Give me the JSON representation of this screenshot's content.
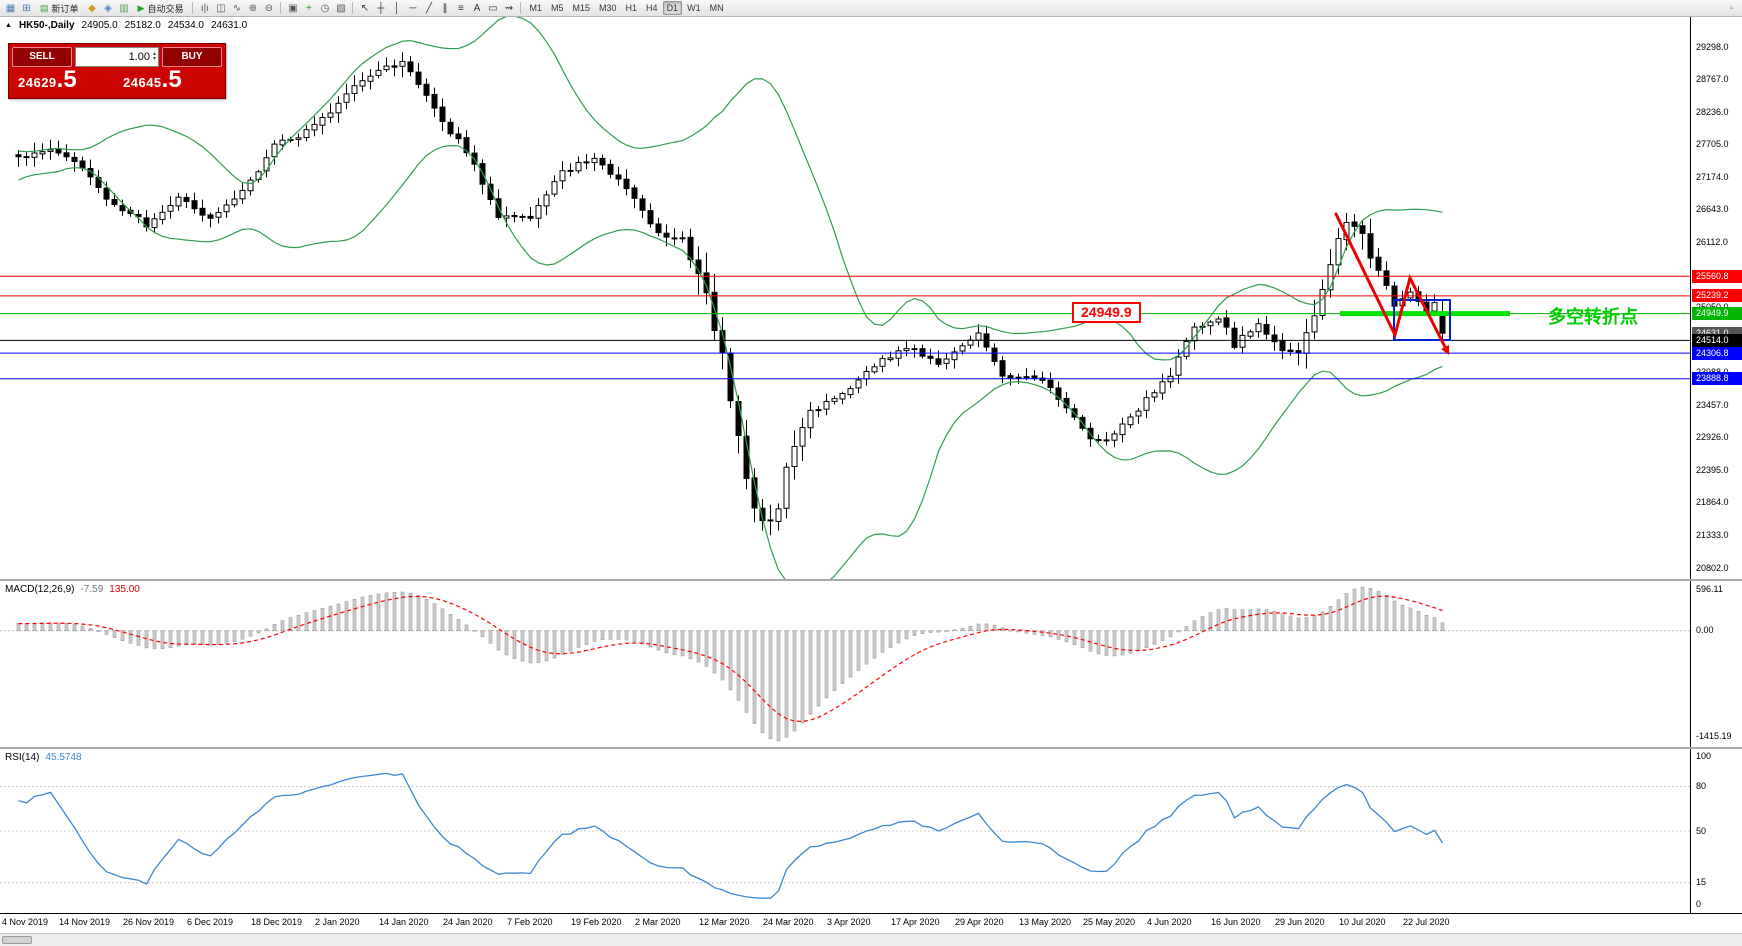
{
  "toolbar": {
    "items": [
      {
        "type": "icon",
        "name": "new-chart-icon",
        "glyph": "▦",
        "color": "#4a78b4"
      },
      {
        "type": "icon",
        "name": "chart-windows-icon",
        "glyph": "⊞",
        "color": "#4a78b4"
      },
      {
        "type": "button",
        "name": "new-order-button",
        "glyph": "▤",
        "glyph_color": "#3aa03a",
        "label": "新订单"
      },
      {
        "type": "icon",
        "name": "market-watch-icon",
        "glyph": "◆",
        "color": "#d89c1a"
      },
      {
        "type": "icon",
        "name": "navigator-icon",
        "glyph": "◈",
        "color": "#4a86c8"
      },
      {
        "type": "icon",
        "name": "terminal-icon",
        "glyph": "▥",
        "color": "#58a058"
      },
      {
        "type": "button",
        "name": "autotrading-button",
        "glyph": "▶",
        "glyph_color": "#22aa22",
        "label": "自动交易"
      },
      {
        "type": "sep"
      },
      {
        "type": "icon",
        "name": "bar-chart-mode-icon",
        "glyph": "ı|ı",
        "color": "#555555"
      },
      {
        "type": "icon",
        "name": "candlestick-mode-icon",
        "glyph": "◫",
        "color": "#555555"
      },
      {
        "type": "icon",
        "name": "line-chart-mode-icon",
        "glyph": "∿",
        "color": "#555555"
      },
      {
        "type": "icon",
        "name": "zoom-in-icon",
        "glyph": "⊕",
        "color": "#555555"
      },
      {
        "type": "icon",
        "name": "zoom-out-icon",
        "glyph": "⊖",
        "color": "#555555"
      },
      {
        "type": "sep"
      },
      {
        "type": "icon",
        "name": "tile-windows-icon",
        "glyph": "▣",
        "color": "#555555"
      },
      {
        "type": "icon",
        "name": "indicators-icon",
        "glyph": "+",
        "color": "#22a022"
      },
      {
        "type": "icon",
        "name": "periods-icon",
        "glyph": "◷",
        "color": "#555555"
      },
      {
        "type": "icon",
        "name": "templates-icon",
        "glyph": "▧",
        "color": "#555555"
      },
      {
        "type": "sep"
      },
      {
        "type": "icon",
        "name": "cursor-icon",
        "glyph": "↖",
        "color": "#333333"
      },
      {
        "type": "icon",
        "name": "crosshair-icon",
        "glyph": "┼",
        "color": "#333333"
      },
      {
        "type": "icon",
        "name": "vertical-line-icon",
        "glyph": "│",
        "color": "#333333"
      },
      {
        "type": "icon",
        "name": "horizontal-line-icon",
        "glyph": "─",
        "color": "#333333"
      },
      {
        "type": "icon",
        "name": "trendline-icon",
        "glyph": "╱",
        "color": "#333333"
      },
      {
        "type": "icon",
        "name": "channel-icon",
        "glyph": "∥",
        "color": "#333333"
      },
      {
        "type": "icon",
        "name": "fibonacci-icon",
        "glyph": "≡",
        "color": "#333333"
      },
      {
        "type": "icon",
        "name": "text-icon",
        "glyph": "A",
        "color": "#333333"
      },
      {
        "type": "icon",
        "name": "text-label-icon",
        "glyph": "▭",
        "color": "#333333"
      },
      {
        "type": "icon",
        "name": "arrows-icon",
        "glyph": "⇝",
        "color": "#333333"
      },
      {
        "type": "sep"
      },
      {
        "type": "tf",
        "label": "M1"
      },
      {
        "type": "tf",
        "label": "M5"
      },
      {
        "type": "tf",
        "label": "M15"
      },
      {
        "type": "tf",
        "label": "M30"
      },
      {
        "type": "tf",
        "label": "H1"
      },
      {
        "type": "tf",
        "label": "H4"
      },
      {
        "type": "tf",
        "label": "D1",
        "active": true
      },
      {
        "type": "tf",
        "label": "W1"
      },
      {
        "type": "tf",
        "label": "MN"
      },
      {
        "type": "spacer"
      },
      {
        "type": "icon",
        "name": "toolbar-options-icon",
        "glyph": "▫",
        "color": "#777777"
      }
    ]
  },
  "chart": {
    "collapse_icon": "▲",
    "symbol_period": "HK50-,Daily",
    "open": "24905.0",
    "high": "25182.0",
    "low": "24534.0",
    "close": "24631.0"
  },
  "trade_panel": {
    "sell_label": "SELL",
    "buy_label": "BUY",
    "volume": "1.00",
    "sell_price_main": "24629",
    "sell_price_pip": ".5",
    "buy_price_main": "24645",
    "buy_price_pip": ".5",
    "panel_color": "#cc0404",
    "button_color": "#930202"
  },
  "price_scale": {
    "ticks": [
      29298,
      28767,
      28236,
      27705,
      27174,
      26643,
      26112,
      25581,
      25050,
      24519,
      23988,
      23457,
      22926,
      22395,
      21864,
      21333,
      20802
    ],
    "badges": [
      {
        "price": 25560.8,
        "text": "25560.8",
        "bg": "#ff0000"
      },
      {
        "price": 25239.2,
        "text": "25239.2",
        "bg": "#ff0000"
      },
      {
        "price": 24949.9,
        "text": "24949.9",
        "bg": "#00b400"
      },
      {
        "price": 24631.0,
        "text": "24631.0",
        "bg": "#555555"
      },
      {
        "price": 24514.0,
        "text": "24514.0",
        "bg": "#000000"
      },
      {
        "price": 24306.8,
        "text": "24306.8",
        "bg": "#0000ff"
      },
      {
        "price": 23888.8,
        "text": "23888.8",
        "bg": "#0000ff"
      }
    ]
  },
  "hlines": [
    {
      "price": 25560.8,
      "color": "#ff0000"
    },
    {
      "price": 25239.2,
      "color": "#ff0000"
    },
    {
      "price": 24949.9,
      "color": "#00b400"
    },
    {
      "price": 24514.0,
      "color": "#000000"
    },
    {
      "price": 24306.8,
      "color": "#0000ff"
    },
    {
      "price": 23888.8,
      "color": "#0000ff"
    }
  ],
  "annotations": {
    "price_label": "24949.9",
    "turning_point_text": "多空转折点",
    "highlight_color": "#00e400",
    "zigzag_color": "#ee0000",
    "box_color": "#0020cc"
  },
  "macd": {
    "title": "MACD(12,26,9)",
    "value": "-7.59",
    "signal_value": "135.00",
    "scale_labels": [
      "596.11",
      "0.00",
      "-1415.19"
    ]
  },
  "rsi": {
    "title": "RSI(14)",
    "value": "45.5748",
    "scale": [
      100,
      80,
      50,
      15,
      0
    ],
    "levels": [
      80,
      50,
      15
    ]
  },
  "time_axis": {
    "labels": [
      "4 Nov 2019",
      "14 Nov 2019",
      "26 Nov 2019",
      "6 Dec 2019",
      "18 Dec 2019",
      "2 Jan 2020",
      "14 Jan 2020",
      "24 Jan 2020",
      "7 Feb 2020",
      "19 Feb 2020",
      "2 Mar 2020",
      "12 Mar 2020",
      "24 Mar 2020",
      "3 Apr 2020",
      "17 Apr 2020",
      "29 Apr 2020",
      "13 May 2020",
      "25 May 2020",
      "4 Jun 2020",
      "16 Jun 2020",
      "29 Jun 2020",
      "10 Jul 2020",
      "22 Jul 2020"
    ]
  },
  "chart_data": {
    "type": "candlestick",
    "symbol": "HK50-",
    "timeframe": "Daily",
    "visible_ohlc": {
      "open": 24905.0,
      "high": 25182.0,
      "low": 24534.0,
      "close": 24631.0
    },
    "bid": 24629.5,
    "ask": 24645.5,
    "price_axis": {
      "top": 29298.0,
      "bottom": 20802.0,
      "step": 531.0
    },
    "horizontal_levels": [
      25560.8,
      25239.2,
      24949.9,
      24514.0,
      24306.8,
      23888.8
    ],
    "bollinger": {
      "period": 20,
      "deviation": 2,
      "color": "#2f9e4f"
    },
    "macd": {
      "fast": 12,
      "slow": 26,
      "signal": 9,
      "last_main": -7.59,
      "last_signal": 135.0,
      "scale_max": 596.11,
      "scale_min": -1415.19
    },
    "rsi": {
      "period": 14,
      "last": 45.5748
    },
    "candles": {
      "count": 179,
      "warmup": 40,
      "anchors": [
        [
          -40,
          26900
        ],
        [
          -30,
          27200
        ],
        [
          -20,
          27100
        ],
        [
          -10,
          27400
        ],
        [
          0,
          27500
        ],
        [
          4,
          27620
        ],
        [
          8,
          27320
        ],
        [
          12,
          26700
        ],
        [
          16,
          26420
        ],
        [
          20,
          26870
        ],
        [
          24,
          26480
        ],
        [
          28,
          26950
        ],
        [
          32,
          27680
        ],
        [
          36,
          27900
        ],
        [
          40,
          28380
        ],
        [
          44,
          28850
        ],
        [
          48,
          29020
        ],
        [
          50,
          28700
        ],
        [
          52,
          28250
        ],
        [
          56,
          27600
        ],
        [
          58,
          27100
        ],
        [
          60,
          26500
        ],
        [
          64,
          26480
        ],
        [
          66,
          26900
        ],
        [
          68,
          27250
        ],
        [
          72,
          27520
        ],
        [
          74,
          27250
        ],
        [
          76,
          26950
        ],
        [
          80,
          26250
        ],
        [
          83,
          26150
        ],
        [
          85,
          25600
        ],
        [
          88,
          24350
        ],
        [
          90,
          22950
        ],
        [
          92,
          21850
        ],
        [
          93,
          21500
        ],
        [
          95,
          21850
        ],
        [
          96,
          22450
        ],
        [
          99,
          23350
        ],
        [
          104,
          23700
        ],
        [
          108,
          24250
        ],
        [
          112,
          24380
        ],
        [
          115,
          24100
        ],
        [
          118,
          24450
        ],
        [
          120,
          24600
        ],
        [
          123,
          23950
        ],
        [
          128,
          23900
        ],
        [
          131,
          23400
        ],
        [
          134,
          22950
        ],
        [
          136,
          22900
        ],
        [
          139,
          23250
        ],
        [
          144,
          23950
        ],
        [
          147,
          24700
        ],
        [
          150,
          24900
        ],
        [
          152,
          24450
        ],
        [
          155,
          24750
        ],
        [
          158,
          24350
        ],
        [
          160,
          24300
        ],
        [
          162,
          24950
        ],
        [
          164,
          25700
        ],
        [
          165,
          26200
        ],
        [
          166,
          26400
        ],
        [
          168,
          26300
        ],
        [
          169,
          25900
        ],
        [
          170,
          25650
        ],
        [
          172,
          25100
        ],
        [
          174,
          25300
        ],
        [
          176,
          24950
        ],
        [
          177,
          25100
        ],
        [
          178,
          24631
        ]
      ],
      "last_candle": {
        "open": 24905,
        "high": 25182,
        "low": 24534,
        "close": 24631
      }
    }
  }
}
